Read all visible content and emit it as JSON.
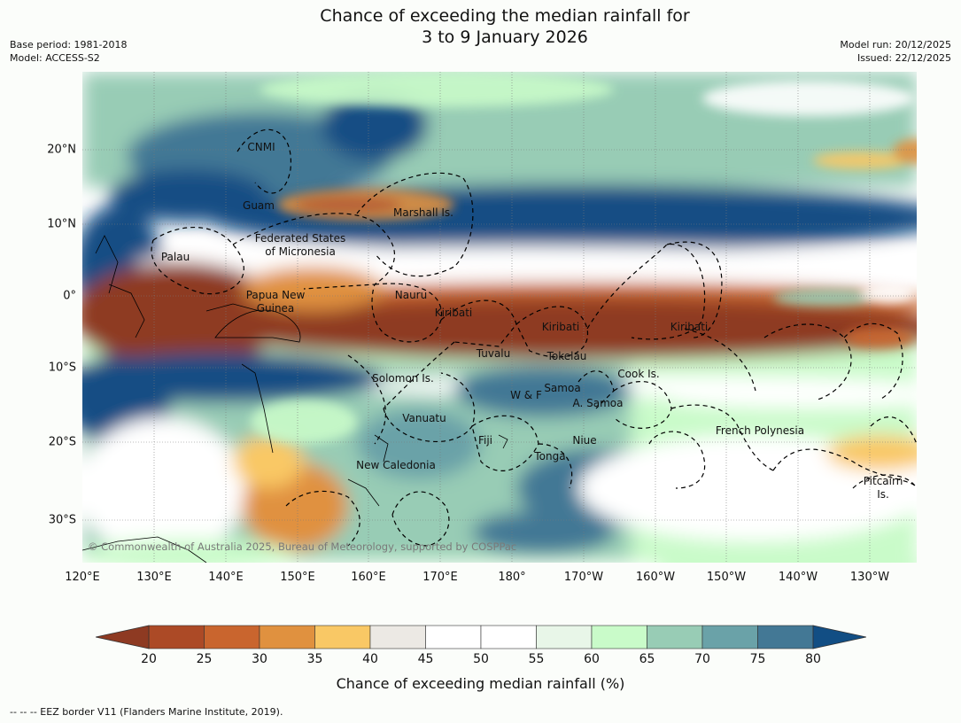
{
  "title": {
    "line1": "Chance of exceeding the median rainfall for",
    "line2": "3 to 9 January 2026"
  },
  "meta": {
    "base_period": "Base period: 1981-2018",
    "model": "Model: ACCESS-S2",
    "model_run": "Model run: 20/12/2025",
    "issued": "Issued: 22/12/2025"
  },
  "map": {
    "lon_labels": [
      "120°E",
      "130°E",
      "140°E",
      "150°E",
      "160°E",
      "170°E",
      "180°",
      "170°W",
      "160°W",
      "150°W",
      "140°W",
      "130°W"
    ],
    "lat_labels": [
      "20°N",
      "10°N",
      "0°",
      "10°S",
      "20°S",
      "30°S"
    ],
    "regions": [
      "CNMI",
      "Guam",
      "Marshall Is.",
      "Federated States",
      "of Micronesia",
      "Palau",
      "Nauru",
      "Papua New",
      "Guinea",
      "Kiribati",
      "Kiribati",
      "Kiribati",
      "Tuvalu",
      "Tokelau",
      "Cook Is.",
      "Solomon Is.",
      "W & F",
      "Samoa",
      "A. Samoa",
      "Vanuatu",
      "Fiji",
      "Niue",
      "French Polynesia",
      "Tonga",
      "New Caledonia",
      "Pitcairn",
      "Is."
    ],
    "copyright": "© Commonwealth of Australia 2025, Bureau of Meteorology, supported by COSPPac"
  },
  "colorbar": {
    "ticks": [
      "20",
      "25",
      "30",
      "35",
      "40",
      "45",
      "50",
      "55",
      "60",
      "65",
      "70",
      "75",
      "80"
    ],
    "under_color": "#8e3a22",
    "over_color": "#124e84",
    "colors": [
      "#ac4a26",
      "#c9652e",
      "#e0913f",
      "#f9c865",
      "#ece9e4",
      "#ffffff",
      "#ffffff",
      "#e8f6e8",
      "#c9fbc9",
      "#98ccb5",
      "#6aa2a8",
      "#437895"
    ],
    "label": "Chance of exceeding median rainfall (%)"
  },
  "footnote": "--  --  -- EEZ border V11 (Flanders Marine Institute, 2019)."
}
